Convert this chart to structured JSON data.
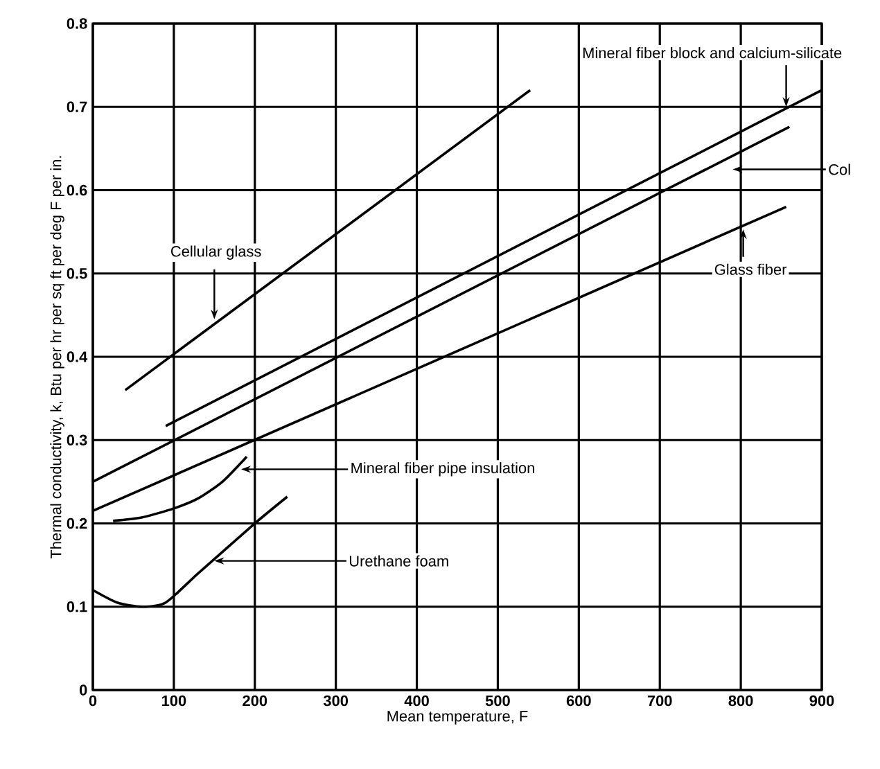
{
  "chart_data": {
    "type": "line",
    "xlabel": "Mean temperature, F",
    "ylabel": "Thermal conductivity, k, Btu per hr per sq ft per deg F per in.",
    "xlim": [
      0,
      900
    ],
    "ylim": [
      0,
      0.8
    ],
    "xticks": [
      0,
      100,
      200,
      300,
      400,
      500,
      600,
      700,
      800,
      900
    ],
    "yticks": [
      0,
      0.1,
      0.2,
      0.3,
      0.4,
      0.5,
      0.6,
      0.7,
      0.8
    ],
    "grid": true,
    "line_style": "solid",
    "series": [
      {
        "name": "Cellular glass",
        "color": "#000000",
        "x": [
          40,
          540
        ],
        "values": [
          0.36,
          0.72
        ]
      },
      {
        "name": "Mineral fiber block and calcium-silicate",
        "color": "#000000",
        "x": [
          90,
          900
        ],
        "values": [
          0.317,
          0.72
        ]
      },
      {
        "name": "Col",
        "color": "#000000",
        "x": [
          0,
          860
        ],
        "values": [
          0.25,
          0.676
        ]
      },
      {
        "name": "Glass fiber",
        "color": "#000000",
        "x": [
          0,
          856
        ],
        "values": [
          0.215,
          0.58
        ]
      },
      {
        "name": "Mineral fiber pipe insulation",
        "color": "#000000",
        "x": [
          25,
          60,
          100,
          130,
          160,
          190
        ],
        "values": [
          0.203,
          0.207,
          0.218,
          0.23,
          0.25,
          0.28
        ]
      },
      {
        "name": "Urethane foam",
        "color": "#000000",
        "x": [
          0,
          30,
          60,
          90,
          130,
          200,
          240
        ],
        "values": [
          0.12,
          0.105,
          0.1,
          0.105,
          0.14,
          0.2,
          0.232
        ]
      }
    ]
  }
}
